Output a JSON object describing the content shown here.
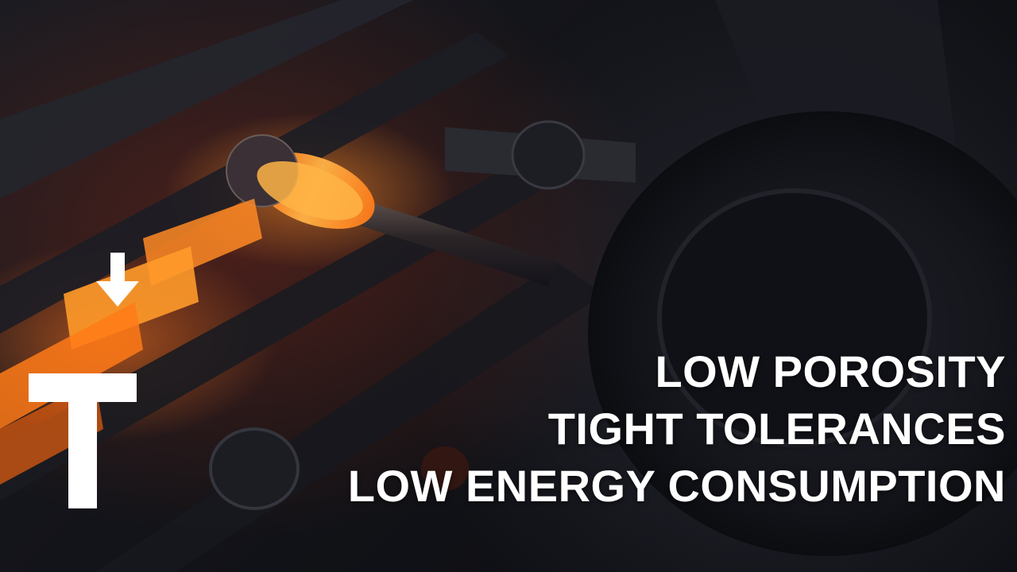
{
  "background": {
    "description_icon": "casting-machine-photo",
    "accent_glow": "#ff8a1e",
    "base": "#121318"
  },
  "logo": {
    "icon": "t-arrow-logo-icon",
    "color": "#ffffff"
  },
  "headline": {
    "lines": [
      "LOW POROSITY",
      "TIGHT TOLERANCES",
      "LOW ENERGY CONSUMPTION"
    ]
  }
}
